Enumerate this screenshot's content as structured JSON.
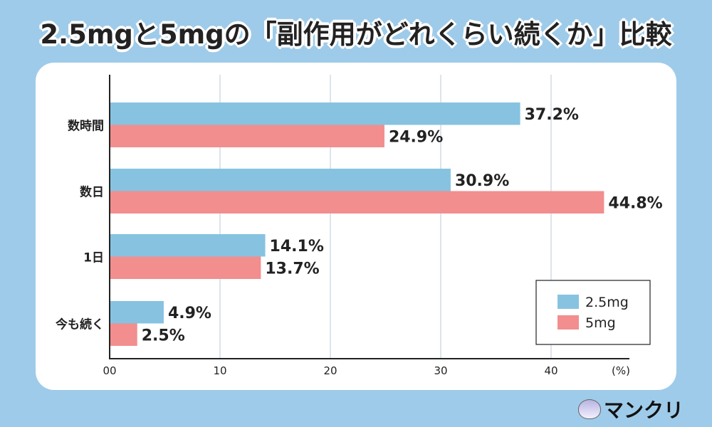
{
  "title": "2.5mgと5mgの「副作用がどれくらい続くか」比較",
  "logo": {
    "text": "マンクリ"
  },
  "chart_data": {
    "type": "bar",
    "orientation": "horizontal",
    "categories": [
      "数時間",
      "数日",
      "1日",
      "今も続く"
    ],
    "series": [
      {
        "name": "2.5mg",
        "values": [
          37.2,
          30.9,
          14.1,
          4.9
        ],
        "labels": [
          "37.2%",
          "30.9%",
          "14.1%",
          "4.9%"
        ],
        "color": "#87c3e0"
      },
      {
        "name": "5mg",
        "values": [
          24.9,
          44.8,
          13.7,
          2.5
        ],
        "labels": [
          "24.9%",
          "44.8%",
          "13.7%",
          "2.5%"
        ],
        "color": "#f28e8e"
      }
    ],
    "xticks": [
      "00",
      "10",
      "20",
      "30",
      "40"
    ],
    "xtick_values": [
      0,
      10,
      20,
      30,
      40
    ],
    "xunit": "(%)",
    "xlim": [
      0,
      47
    ],
    "grid": "vertical",
    "legend": "bottom-right"
  }
}
